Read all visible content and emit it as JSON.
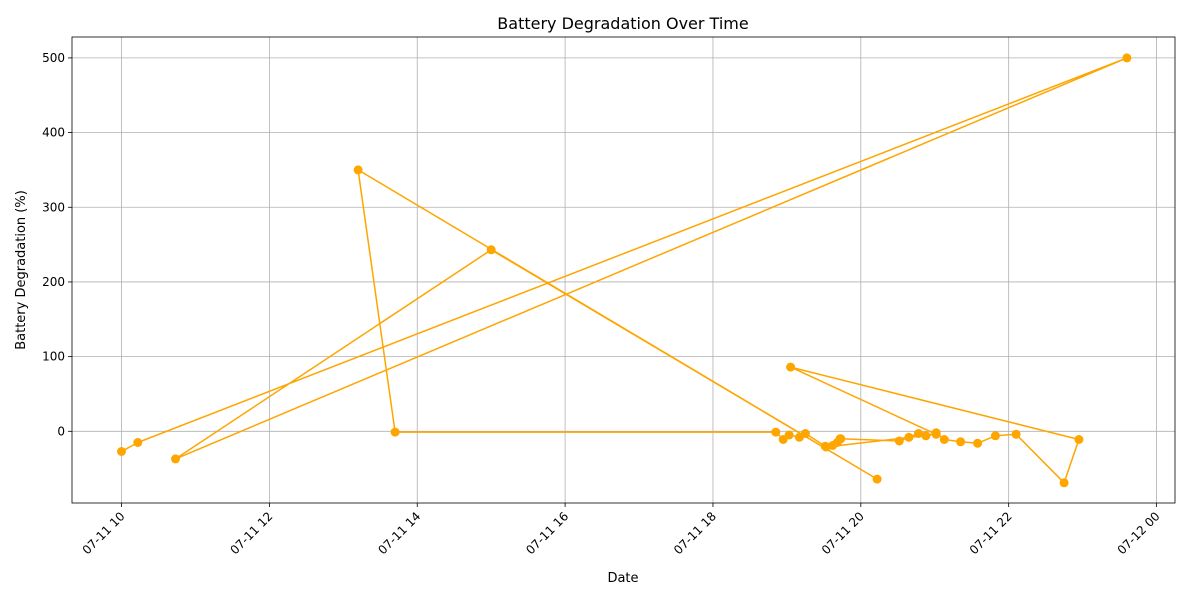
{
  "chart_data": {
    "type": "line",
    "title": "Battery Degradation Over Time",
    "xlabel": "Date",
    "ylabel": "Battery Degradation (%)",
    "color": "#ffa500",
    "marker": "circle",
    "grid": true,
    "x_tick_labels": [
      "07-11 10",
      "07-11 12",
      "07-11 14",
      "07-11 16",
      "07-11 18",
      "07-11 20",
      "07-11 22",
      "07-12 00"
    ],
    "x_tick_hours": [
      10,
      12,
      14,
      16,
      18,
      20,
      22,
      24
    ],
    "x_range_hours": [
      9.33,
      24.25
    ],
    "y_ticks": [
      0,
      100,
      200,
      300,
      400,
      500
    ],
    "ylim": [
      -96,
      528
    ],
    "x_unit_note": "hours since 2023-07-11 00:00",
    "x": [
      10.0,
      10.22,
      23.6,
      10.73,
      15.0,
      20.22,
      13.2,
      13.7,
      18.85,
      18.95,
      19.03,
      19.17,
      19.25,
      19.52,
      19.62,
      19.68,
      19.72,
      20.52,
      20.65,
      20.78,
      20.88,
      21.02,
      21.13,
      21.35,
      21.58,
      21.82,
      22.1,
      22.75,
      22.95,
      19.05,
      21.02,
      19.53,
      19.73
    ],
    "values": [
      -27,
      -15,
      500,
      -37,
      243,
      -64,
      350,
      -1,
      -1,
      -11,
      -5,
      -8,
      -3,
      -20,
      -19,
      -15,
      -10,
      -13,
      -8,
      -3,
      -6,
      -2,
      -11,
      -14,
      -16,
      -6,
      -4,
      -69,
      -11,
      86,
      -4,
      -21,
      -10
    ]
  }
}
